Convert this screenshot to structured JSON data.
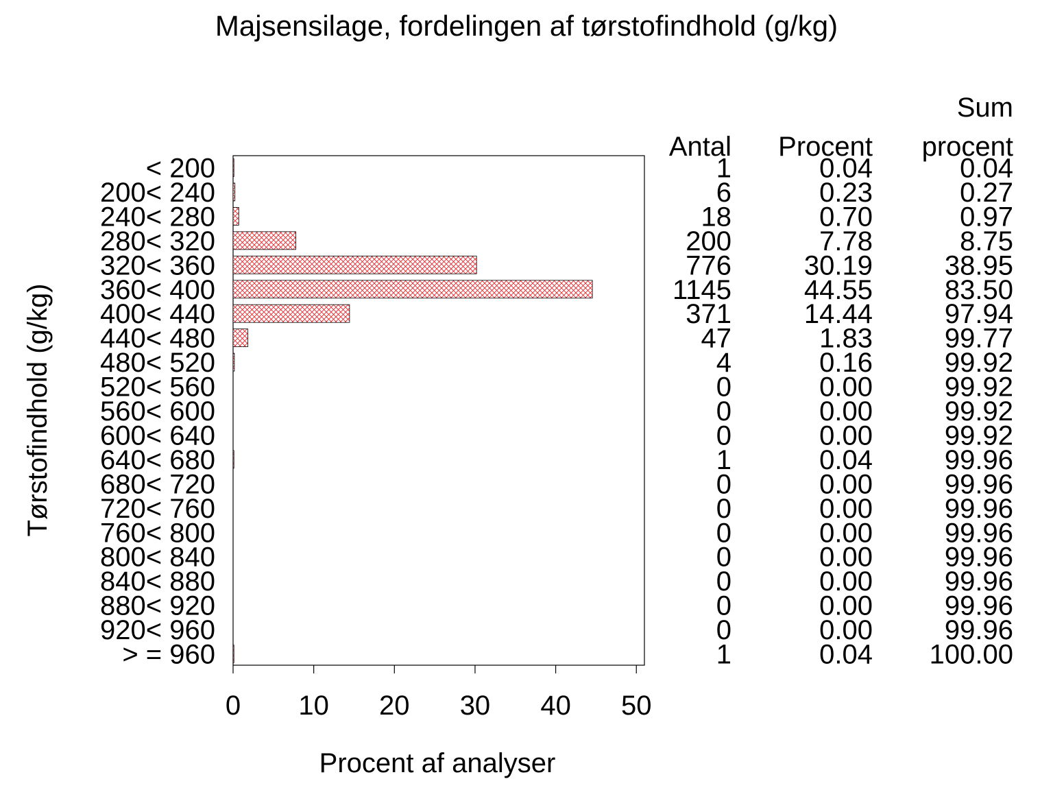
{
  "chart_data": {
    "type": "bar",
    "orientation": "horizontal",
    "title": "Majsensilage,  fordelingen  af  tørstofindhold  (g/kg)",
    "xlabel": "Procent  af  analyser",
    "ylabel": "Tørstofindhold  (g/kg)",
    "xlim": [
      0,
      51
    ],
    "xticks": [
      "0",
      "10",
      "20",
      "30",
      "40",
      "50"
    ],
    "categories": [
      "< 200",
      "200< 240",
      "240< 280",
      "280< 320",
      "320< 360",
      "360< 400",
      "400< 440",
      "440< 480",
      "480< 520",
      "520< 560",
      "560< 600",
      "600< 640",
      "640< 680",
      "680< 720",
      "720< 760",
      "760< 800",
      "800< 840",
      "840< 880",
      "880< 920",
      "920< 960",
      "> = 960"
    ],
    "values": [
      0.04,
      0.23,
      0.7,
      7.78,
      30.19,
      44.55,
      14.44,
      1.83,
      0.16,
      0.0,
      0.0,
      0.0,
      0.04,
      0.0,
      0.0,
      0.0,
      0.0,
      0.0,
      0.0,
      0.0,
      0.04
    ],
    "bar_fill": "crosshatch",
    "bar_color": "#e8262b",
    "grid": false,
    "table": {
      "headers": {
        "antal": "Antal",
        "procent": "Procent",
        "sum_line1": "Sum",
        "sum_line2": "procent"
      },
      "antal": [
        "1",
        "6",
        "18",
        "200",
        "776",
        "1145",
        "371",
        "47",
        "4",
        "0",
        "0",
        "0",
        "1",
        "0",
        "0",
        "0",
        "0",
        "0",
        "0",
        "0",
        "1"
      ],
      "procent": [
        "0.04",
        "0.23",
        "0.70",
        "7.78",
        "30.19",
        "44.55",
        "14.44",
        "1.83",
        "0.16",
        "0.00",
        "0.00",
        "0.00",
        "0.04",
        "0.00",
        "0.00",
        "0.00",
        "0.00",
        "0.00",
        "0.00",
        "0.00",
        "0.04"
      ],
      "sum_procent": [
        "0.04",
        "0.27",
        "0.97",
        "8.75",
        "38.95",
        "83.50",
        "97.94",
        "99.77",
        "99.92",
        "99.92",
        "99.92",
        "99.92",
        "99.96",
        "99.96",
        "99.96",
        "99.96",
        "99.96",
        "99.96",
        "99.96",
        "99.96",
        "100.00"
      ]
    }
  }
}
